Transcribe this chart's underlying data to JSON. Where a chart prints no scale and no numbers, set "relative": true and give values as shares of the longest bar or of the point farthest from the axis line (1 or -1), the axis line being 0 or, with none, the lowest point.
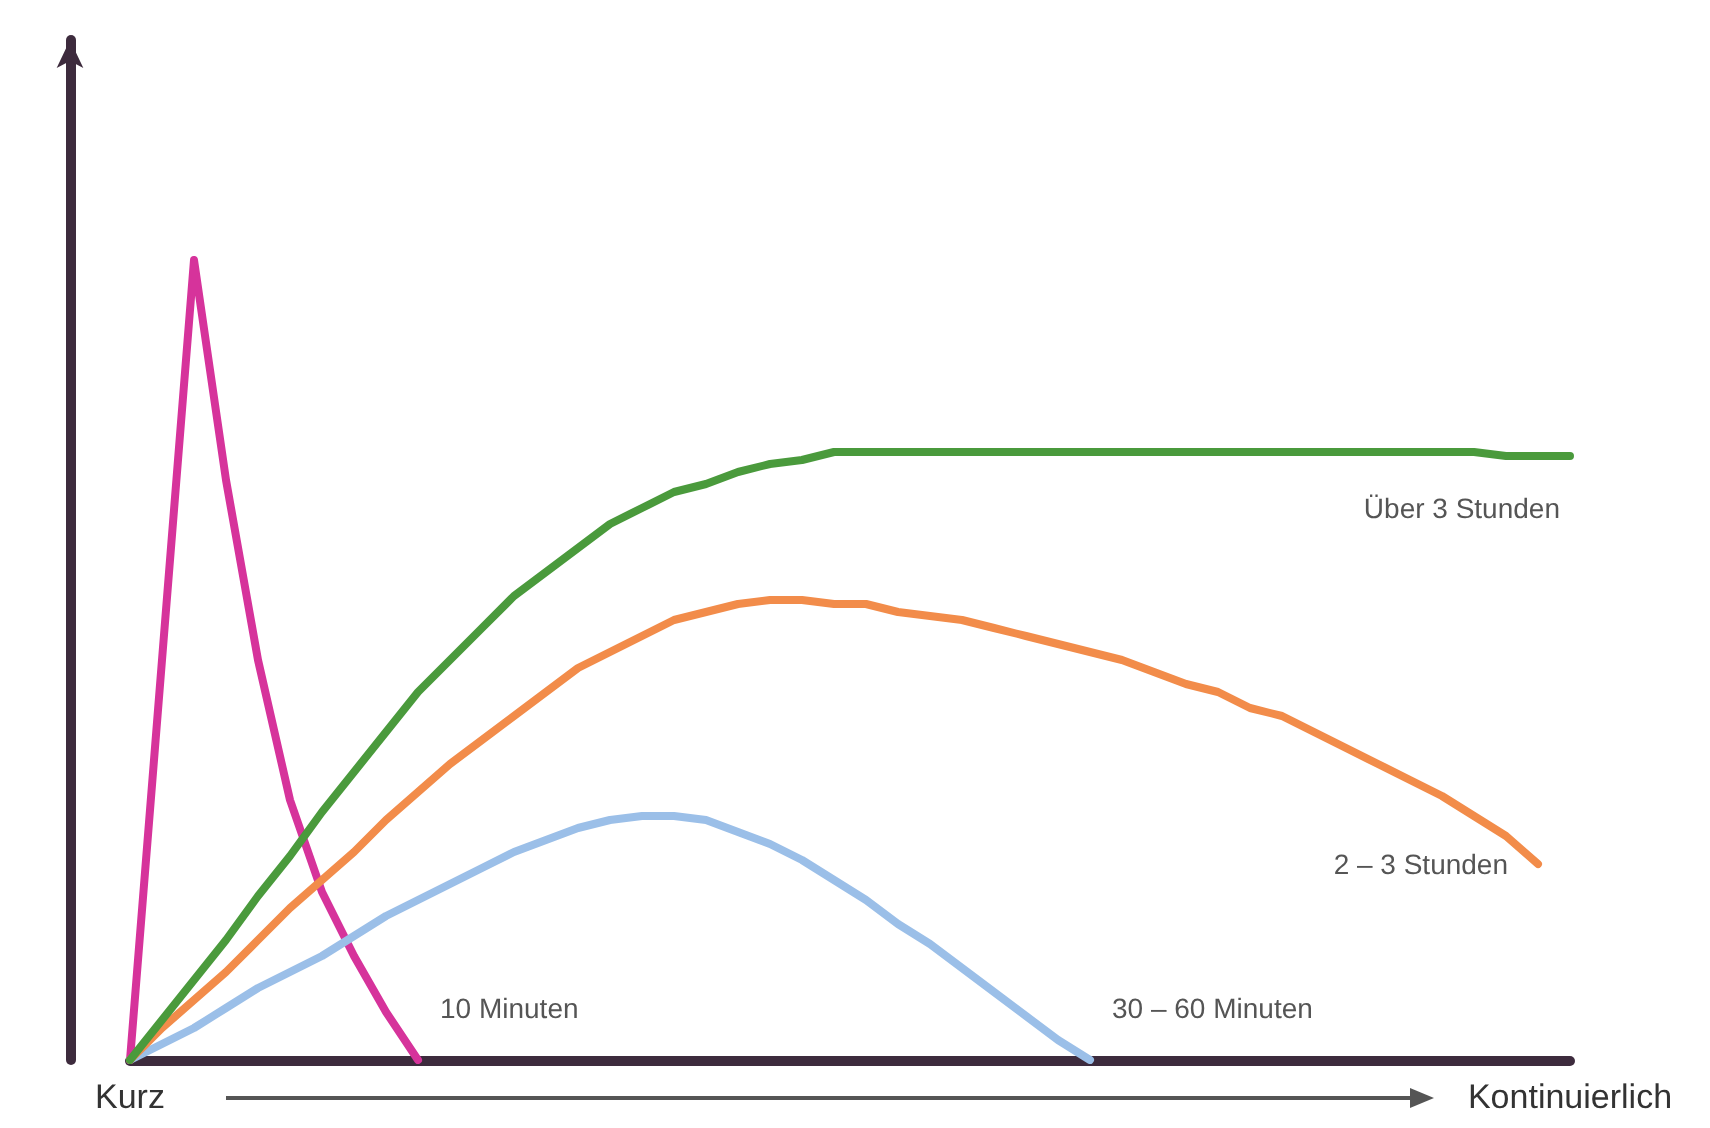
{
  "chart_data": {
    "type": "line",
    "relative": true,
    "grid": false,
    "legend": false,
    "marker": "none",
    "line_style": "solid",
    "categories": [
      "Kurz",
      null,
      null,
      null,
      null,
      null,
      null,
      null,
      null,
      null,
      null,
      null,
      null,
      null,
      null,
      null,
      null,
      null,
      null,
      null,
      null,
      null,
      null,
      null,
      null,
      null,
      null,
      null,
      null,
      null,
      null,
      null,
      null,
      null,
      null,
      null,
      null,
      null,
      null,
      null,
      null,
      null,
      null,
      null,
      null,
      "Kontinuierlich"
    ],
    "series": [
      {
        "name": "10 Minuten",
        "color": "#d6339b",
        "values": [
          0,
          0.5,
          1,
          0.725,
          0.5,
          0.325,
          0.21,
          0.13,
          0.06,
          0,
          null,
          null,
          null,
          null,
          null,
          null,
          null,
          null,
          null,
          null,
          null,
          null,
          null,
          null,
          null,
          null,
          null,
          null,
          null,
          null,
          null,
          null,
          null,
          null,
          null,
          null,
          null,
          null,
          null,
          null,
          null,
          null,
          null,
          null,
          null,
          null
        ]
      },
      {
        "name": "30 – 60 Minuten",
        "color": "#9bbfe8",
        "values": [
          0,
          0.02,
          0.04,
          0.065,
          0.09,
          0.11,
          0.13,
          0.155,
          0.18,
          0.2,
          0.22,
          0.24,
          0.26,
          0.275,
          0.29,
          0.3,
          0.305,
          0.305,
          0.3,
          0.285,
          0.27,
          0.25,
          0.225,
          0.2,
          0.17,
          0.145,
          0.115,
          0.085,
          0.055,
          0.025,
          0,
          null,
          null,
          null,
          null,
          null,
          null,
          null,
          null,
          null,
          null,
          null,
          null,
          null,
          null,
          null
        ]
      },
      {
        "name": "2 – 3 Stunden",
        "color": "#f28c4a",
        "values": [
          0,
          0.04,
          0.075,
          0.11,
          0.15,
          0.19,
          0.225,
          0.26,
          0.3,
          0.335,
          0.37,
          0.4,
          0.43,
          0.46,
          0.49,
          0.51,
          0.53,
          0.55,
          0.56,
          0.57,
          0.575,
          0.575,
          0.57,
          0.57,
          0.56,
          0.555,
          0.55,
          0.54,
          0.53,
          0.52,
          0.51,
          0.5,
          0.485,
          0.47,
          0.46,
          0.44,
          0.43,
          0.41,
          0.39,
          0.37,
          0.35,
          0.33,
          0.305,
          0.28,
          0.245,
          null
        ]
      },
      {
        "name": "Über 3 Stunden",
        "color": "#4a9a3c",
        "values": [
          0,
          0.05,
          0.1,
          0.15,
          0.205,
          0.255,
          0.31,
          0.36,
          0.41,
          0.46,
          0.5,
          0.54,
          0.58,
          0.61,
          0.64,
          0.67,
          0.69,
          0.71,
          0.72,
          0.735,
          0.745,
          0.75,
          0.76,
          0.76,
          0.76,
          0.76,
          0.76,
          0.76,
          0.76,
          0.76,
          0.76,
          0.76,
          0.76,
          0.76,
          0.76,
          0.76,
          0.76,
          0.76,
          0.76,
          0.76,
          0.76,
          0.76,
          0.76,
          0.755,
          0.755,
          0.755
        ]
      }
    ]
  }
}
